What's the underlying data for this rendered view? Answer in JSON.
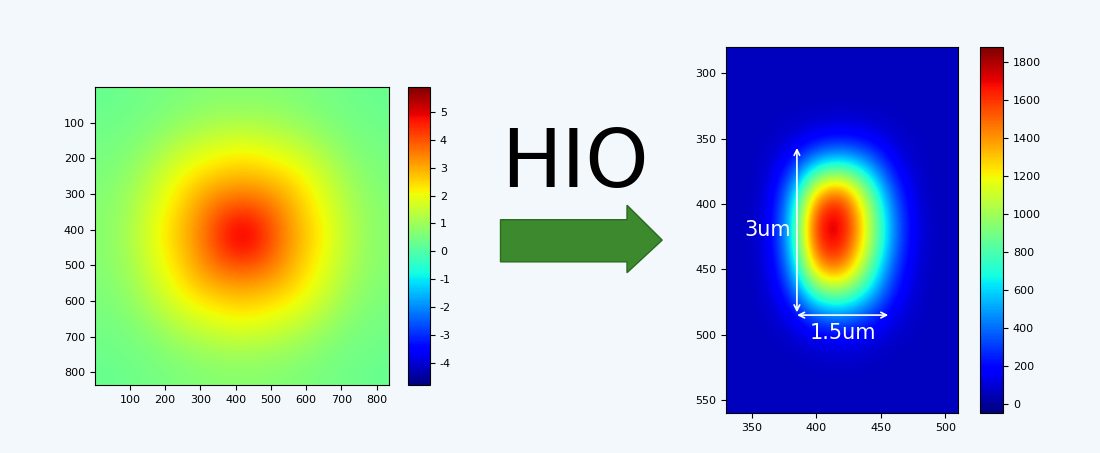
{
  "chart_data": [
    {
      "type": "heatmap",
      "x": [
        38,
        114,
        190,
        266,
        342,
        418,
        494,
        570,
        646,
        722,
        798
      ],
      "y": [
        38,
        114,
        190,
        266,
        342,
        418,
        494,
        570,
        646,
        722,
        798
      ],
      "cells": [
        [
          0.3,
          0.4,
          0.5,
          0.6,
          0.7,
          0.7,
          0.7,
          0.6,
          0.5,
          0.4,
          0.3
        ],
        [
          0.4,
          0.5,
          0.7,
          1.0,
          1.2,
          1.3,
          1.2,
          1.0,
          0.7,
          0.5,
          0.4
        ],
        [
          0.5,
          0.7,
          1.2,
          1.7,
          2.0,
          2.2,
          2.0,
          1.7,
          1.2,
          0.7,
          0.5
        ],
        [
          0.6,
          1.0,
          1.7,
          2.4,
          2.8,
          3.0,
          2.8,
          2.4,
          1.7,
          1.0,
          0.6
        ],
        [
          0.7,
          1.2,
          2.0,
          2.8,
          3.8,
          4.2,
          3.8,
          2.8,
          2.0,
          1.2,
          0.7
        ],
        [
          0.7,
          1.3,
          2.2,
          3.0,
          4.2,
          5.5,
          4.2,
          3.0,
          2.2,
          1.3,
          0.7
        ],
        [
          0.7,
          1.2,
          2.0,
          2.8,
          3.8,
          4.2,
          3.8,
          2.8,
          2.0,
          1.2,
          0.7
        ],
        [
          0.6,
          1.0,
          1.7,
          2.4,
          2.8,
          3.0,
          2.8,
          2.4,
          1.7,
          1.0,
          0.6
        ],
        [
          0.5,
          0.7,
          1.2,
          1.7,
          2.0,
          2.2,
          2.0,
          1.7,
          1.2,
          0.7,
          0.5
        ],
        [
          0.4,
          0.5,
          0.7,
          1.0,
          1.2,
          1.3,
          1.2,
          1.0,
          0.7,
          0.5,
          0.4
        ],
        [
          0.3,
          0.4,
          0.5,
          0.6,
          0.7,
          0.7,
          0.7,
          0.6,
          0.5,
          0.4,
          0.3
        ]
      ],
      "xlim": [
        0,
        836
      ],
      "ylim": [
        836,
        0
      ],
      "xticks": [
        100,
        200,
        300,
        400,
        500,
        600,
        700,
        800
      ],
      "yticks": [
        100,
        200,
        300,
        400,
        500,
        600,
        700,
        800
      ],
      "colorbar_range": [
        -4.8,
        5.9
      ],
      "colorbar_ticks": [
        -4,
        -3,
        -2,
        -1,
        0,
        1,
        2,
        3,
        4,
        5
      ]
    },
    {
      "type": "heatmap",
      "x": [
        340,
        360,
        380,
        400,
        420,
        440,
        460,
        480,
        500
      ],
      "y": [
        290,
        310,
        330,
        350,
        370,
        390,
        410,
        430,
        450,
        470,
        490,
        510,
        530,
        550
      ],
      "cells": [
        [
          60,
          60,
          60,
          60,
          60,
          60,
          60,
          60,
          60
        ],
        [
          60,
          60,
          60,
          60,
          60,
          60,
          60,
          60,
          60
        ],
        [
          60,
          60,
          60,
          60,
          60,
          60,
          60,
          60,
          60
        ],
        [
          60,
          60,
          80,
          150,
          200,
          150,
          80,
          60,
          60
        ],
        [
          60,
          60,
          200,
          600,
          700,
          500,
          150,
          60,
          60
        ],
        [
          60,
          60,
          400,
          1300,
          1500,
          900,
          300,
          60,
          60
        ],
        [
          60,
          70,
          500,
          1700,
          1800,
          1100,
          400,
          70,
          60
        ],
        [
          60,
          70,
          500,
          1700,
          1750,
          1100,
          400,
          70,
          60
        ],
        [
          60,
          60,
          400,
          1400,
          1500,
          900,
          300,
          60,
          60
        ],
        [
          60,
          60,
          250,
          800,
          900,
          600,
          200,
          60,
          60
        ],
        [
          60,
          60,
          100,
          300,
          350,
          250,
          100,
          60,
          60
        ],
        [
          60,
          60,
          60,
          80,
          100,
          80,
          60,
          60,
          60
        ],
        [
          60,
          60,
          60,
          60,
          60,
          60,
          60,
          60,
          60
        ],
        [
          60,
          60,
          60,
          60,
          60,
          60,
          60,
          60,
          60
        ]
      ],
      "xlim": [
        330,
        510
      ],
      "ylim": [
        560,
        280
      ],
      "xticks": [
        350,
        400,
        450,
        500
      ],
      "yticks": [
        300,
        350,
        400,
        450,
        500,
        550
      ],
      "colorbar_range": [
        -50,
        1880
      ],
      "colorbar_ticks": [
        0,
        200,
        400,
        600,
        800,
        1000,
        1200,
        1400,
        1600,
        1800
      ],
      "annotations": [
        {
          "text": "3um",
          "x": [
            385,
            385
          ],
          "y": [
            485,
            355
          ]
        },
        {
          "text": "1.5um",
          "x": [
            383,
            458
          ],
          "y": [
            485,
            485
          ]
        }
      ]
    }
  ],
  "arrow_text": "HIO"
}
